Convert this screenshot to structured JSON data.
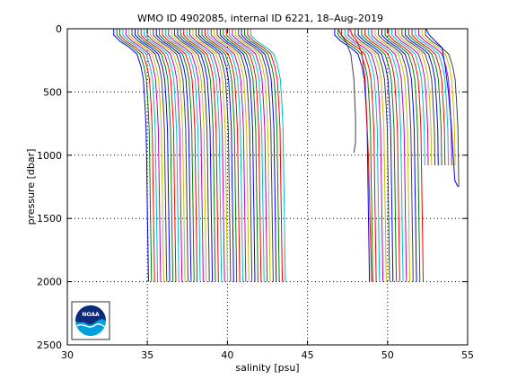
{
  "chart_data": {
    "type": "line",
    "title": "WMO ID 4902085, internal ID 6221, 18–Aug–2019",
    "xlabel": "salinity [psu]",
    "ylabel": "pressure [dbar]",
    "xlim": [
      30,
      55
    ],
    "ylim": [
      0,
      2500
    ],
    "y_reversed": true,
    "grid": true,
    "x_ticks": [
      30,
      35,
      40,
      45,
      50,
      55
    ],
    "y_ticks": [
      0,
      500,
      1000,
      1500,
      2000,
      2500
    ],
    "logo_label": "NOAA",
    "palette": [
      "#0000ff",
      "#008000",
      "#ff0000",
      "#00bfbf",
      "#bf00bf",
      "#bfbf00",
      "#404040"
    ],
    "profile_pressures": [
      0,
      50,
      100,
      150,
      200,
      300,
      400,
      600,
      800,
      1000,
      1250,
      1500,
      1750,
      2000
    ],
    "group_a": {
      "deep_start_salinity": 34.9,
      "deep_step": 0.19,
      "count": 46,
      "max_pressure": 2000,
      "surface_offsets": [
        -2.0,
        -2.0,
        -1.6,
        -1.0,
        -0.55,
        -0.3,
        -0.15,
        -0.05,
        0.0,
        0.0,
        0.0,
        0.0,
        0.0,
        0.0
      ]
    },
    "group_b": {
      "deep_start_salinity": 48.7,
      "deep_step": 0.21,
      "count": 28,
      "max_pressure": [
        2000,
        2000,
        2000,
        2000,
        2000,
        2000,
        2000,
        2000,
        2000,
        2000,
        2000,
        2000,
        2000,
        2000,
        2000,
        2000,
        2000,
        1080,
        1080,
        1080,
        1080,
        1080,
        1080,
        1080,
        1080,
        1080,
        1080,
        1250
      ],
      "surface_offsets": [
        -2.0,
        -2.0,
        -1.6,
        -1.0,
        -0.55,
        -0.3,
        -0.15,
        -0.05,
        0.0,
        0.0,
        0.0,
        0.0,
        0.0,
        0.0
      ]
    },
    "extra_profiles": [
      {
        "color": "#404040",
        "points": [
          [
            46.9,
            0
          ],
          [
            47.1,
            50
          ],
          [
            47.4,
            100
          ],
          [
            47.7,
            200
          ],
          [
            47.9,
            400
          ],
          [
            48.0,
            700
          ],
          [
            48.0,
            900
          ],
          [
            47.9,
            980
          ]
        ]
      },
      {
        "color": "#ff0000",
        "points": [
          [
            47.6,
            0
          ],
          [
            47.8,
            50
          ],
          [
            48.1,
            100
          ],
          [
            48.4,
            200
          ],
          [
            48.6,
            400
          ],
          [
            48.7,
            700
          ],
          [
            48.8,
            1000
          ],
          [
            48.9,
            1500
          ],
          [
            49.0,
            2000
          ]
        ]
      },
      {
        "color": "#0000ff",
        "points": [
          [
            52.4,
            0
          ],
          [
            52.6,
            50
          ],
          [
            53.0,
            100
          ],
          [
            53.4,
            150
          ],
          [
            53.6,
            300
          ],
          [
            53.8,
            500
          ],
          [
            54.0,
            800
          ],
          [
            54.1,
            1000
          ],
          [
            54.2,
            1200
          ],
          [
            54.4,
            1250
          ]
        ]
      }
    ]
  }
}
